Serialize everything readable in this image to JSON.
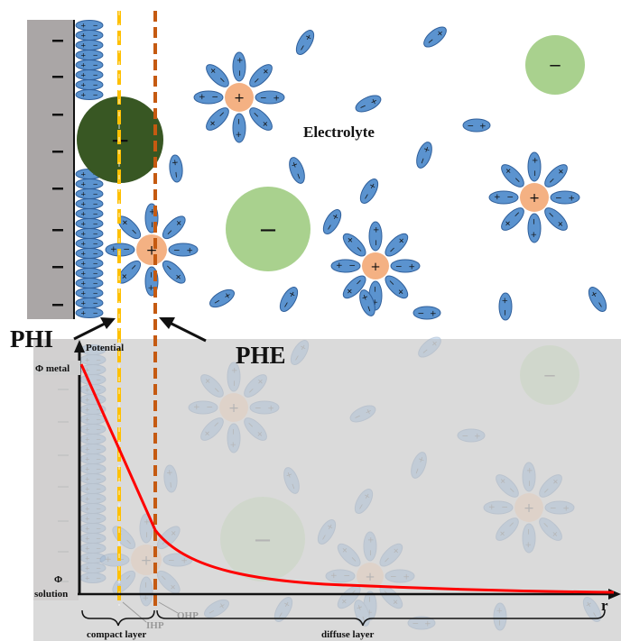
{
  "labels": {
    "phi": "PHI",
    "phe": "PHE",
    "electrolyte": "Electrolyte",
    "potential": "Potential",
    "phi_metal": "Φ metal",
    "phi_solution_symbol": "Φ",
    "phi_solution_word": "solution",
    "r_axis": "r",
    "ihp": "IHP",
    "ohp": "OHP",
    "compact_layer": "compact layer",
    "diffuse_layer": "diffuse layer"
  },
  "signs": {
    "plus": "+",
    "minus": "−"
  },
  "colors": {
    "electrode": "#aaa6a6",
    "water_fill": "#5b93cf",
    "water_stroke": "#2f5f9b",
    "cation": "#f4b183",
    "anion_large": "#a9d18e",
    "anion_adsorbed": "#385723",
    "ihp_line": "#ffc000",
    "ohp_line": "#c55a11",
    "potential_curve": "#ff0000",
    "overlay": "#d8d8d8"
  }
}
